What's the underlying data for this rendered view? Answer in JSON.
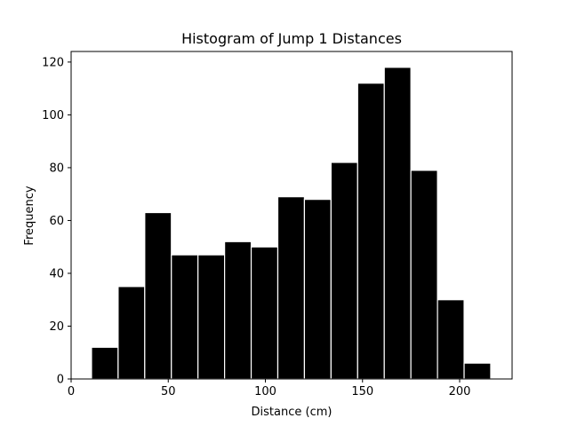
{
  "chart_data": {
    "type": "bar",
    "title": "Histogram of Jump 1 Distances",
    "xlabel": "Distance (cm)",
    "ylabel": "Frequency",
    "xlim": [
      0,
      227
    ],
    "ylim": [
      0,
      124
    ],
    "xticks": [
      0,
      50,
      100,
      150,
      200
    ],
    "yticks": [
      0,
      20,
      40,
      60,
      80,
      100,
      120
    ],
    "bin_edges": [
      10.5,
      24.2,
      37.9,
      51.6,
      65.3,
      79.0,
      92.7,
      106.4,
      120.1,
      133.8,
      147.5,
      161.2,
      174.9,
      188.6,
      202.3,
      216.0
    ],
    "values": [
      12,
      35,
      63,
      47,
      47,
      52,
      50,
      69,
      68,
      82,
      112,
      118,
      79,
      30,
      6
    ],
    "bar_color": "#000000",
    "edge_color": "#ffffff",
    "grid": false
  }
}
